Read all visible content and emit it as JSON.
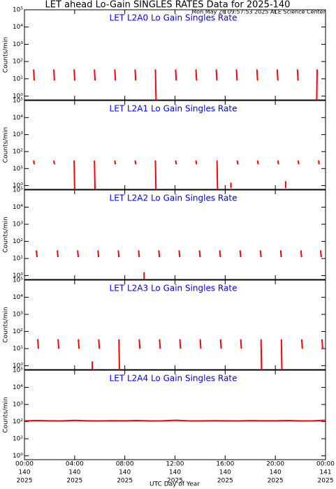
{
  "title": "LET ahead Lo-Gain SINGLES RATES Data for 2025-140",
  "timestamp": "Mon May 26 09:57:53 2025 ACE Science Center",
  "xlabel": "UTC Day of Year",
  "chart_data": [
    {
      "type": "line",
      "title": "LET L2A0 Lo Gain Singles Rate",
      "ylabel": "Counts/min",
      "color": "#ff0000",
      "log_scale": true,
      "xlim": [
        0,
        24
      ],
      "ylim": [
        0.6,
        100000
      ],
      "yticks": [
        {
          "value": 1,
          "label": "10⁰"
        },
        {
          "value": 10,
          "label": "10¹"
        },
        {
          "value": 100,
          "label": "10²"
        },
        {
          "value": 1000,
          "label": "10³"
        },
        {
          "value": 10000,
          "label": "10⁴"
        },
        {
          "value": 100000,
          "label": "10⁵"
        }
      ],
      "x": [
        0.73,
        0.78,
        null,
        2.34,
        2.39,
        null,
        3.96,
        4.01,
        null,
        5.58,
        5.63,
        null,
        7.2,
        7.25,
        null,
        8.82,
        8.87,
        null,
        10.44,
        10.49,
        null,
        12.05,
        12.1,
        null,
        13.67,
        13.72,
        null,
        15.29,
        15.34,
        null,
        16.9,
        16.95,
        null,
        18.53,
        18.58,
        null,
        20.15,
        20.2,
        null,
        21.76,
        21.81,
        null,
        23.3,
        23.33
      ],
      "values": [
        35,
        8,
        null,
        35,
        8,
        null,
        35,
        8,
        null,
        35,
        8,
        null,
        35,
        8,
        null,
        35,
        8,
        null,
        35,
        0.6,
        null,
        35,
        8,
        null,
        35,
        8,
        null,
        35,
        8,
        null,
        35,
        8,
        null,
        35,
        8,
        null,
        35,
        8,
        null,
        35,
        8,
        null,
        0.6,
        35
      ]
    },
    {
      "type": "line",
      "title": "LET L2A1 Lo Gain Singles Rate",
      "ylabel": "Counts/min",
      "color": "#ff0000",
      "log_scale": true,
      "xlim": [
        0,
        24
      ],
      "ylim": [
        0.6,
        100000
      ],
      "yticks": [
        {
          "value": 1,
          "label": "10⁰"
        },
        {
          "value": 10,
          "label": "10¹"
        },
        {
          "value": 100,
          "label": "10²"
        },
        {
          "value": 1000,
          "label": "10³"
        },
        {
          "value": 10000,
          "label": "10⁴"
        },
        {
          "value": 100000,
          "label": "10⁵"
        }
      ],
      "x": [
        0.73,
        0.78,
        null,
        2.34,
        2.39,
        null,
        3.96,
        4.0,
        null,
        5.58,
        5.62,
        null,
        7.2,
        7.25,
        null,
        8.82,
        8.87,
        null,
        10.44,
        10.48,
        null,
        12.05,
        12.1,
        null,
        13.67,
        13.72,
        null,
        15.35,
        15.39,
        null,
        16.46,
        16.46,
        null,
        16.96,
        17.01,
        null,
        18.58,
        18.63,
        null,
        20.2,
        20.25,
        null,
        20.82,
        20.82,
        null,
        21.82,
        21.87,
        null,
        23.44,
        23.49
      ],
      "values": [
        30,
        18,
        null,
        30,
        18,
        null,
        30,
        0.6,
        null,
        30,
        0.6,
        null,
        30,
        18,
        null,
        30,
        18,
        null,
        30,
        0.6,
        null,
        30,
        18,
        null,
        30,
        18,
        null,
        30,
        0.6,
        null,
        0.7,
        1.5,
        null,
        30,
        18,
        null,
        30,
        18,
        null,
        30,
        18,
        null,
        0.7,
        1.8,
        null,
        30,
        18,
        null,
        30,
        18
      ]
    },
    {
      "type": "line",
      "title": "LET L2A2 Lo Gain Singles Rate",
      "ylabel": "Counts/min",
      "color": "#ff0000",
      "log_scale": true,
      "xlim": [
        0,
        24
      ],
      "ylim": [
        0.6,
        100000
      ],
      "yticks": [
        {
          "value": 1,
          "label": "10⁰"
        },
        {
          "value": 10,
          "label": "10¹"
        },
        {
          "value": 100,
          "label": "10²"
        },
        {
          "value": 1000,
          "label": "10³"
        },
        {
          "value": 10000,
          "label": "10⁴"
        },
        {
          "value": 100000,
          "label": "10⁵"
        }
      ],
      "x": [
        0.95,
        1.0,
        null,
        2.62,
        2.67,
        null,
        4.24,
        4.29,
        null,
        5.86,
        5.91,
        null,
        7.48,
        7.53,
        null,
        9.1,
        9.15,
        null,
        9.54,
        9.54,
        null,
        10.71,
        10.76,
        null,
        12.33,
        12.38,
        null,
        13.95,
        14.0,
        null,
        15.57,
        15.62,
        null,
        17.19,
        17.24,
        null,
        18.81,
        18.86,
        null,
        20.42,
        20.47,
        null,
        22.04,
        22.09,
        null,
        23.61,
        23.66
      ],
      "values": [
        30,
        12,
        null,
        30,
        12,
        null,
        30,
        12,
        null,
        30,
        12,
        null,
        30,
        12,
        null,
        30,
        12,
        null,
        0.6,
        1.6,
        null,
        30,
        12,
        null,
        30,
        12,
        null,
        30,
        12,
        null,
        30,
        12,
        null,
        30,
        12,
        null,
        30,
        12,
        null,
        30,
        12,
        null,
        30,
        12,
        null,
        30,
        12
      ]
    },
    {
      "type": "line",
      "title": "LET L2A3 Lo Gain Singles Rate",
      "ylabel": "Counts/min",
      "color": "#ff0000",
      "log_scale": true,
      "xlim": [
        0,
        24
      ],
      "ylim": [
        0.6,
        100000
      ],
      "yticks": [
        {
          "value": 1,
          "label": "10⁰"
        },
        {
          "value": 10,
          "label": "10¹"
        },
        {
          "value": 100,
          "label": "10²"
        },
        {
          "value": 1000,
          "label": "10³"
        },
        {
          "value": 10000,
          "label": "10⁴"
        },
        {
          "value": 100000,
          "label": "10⁵"
        }
      ],
      "x": [
        1.06,
        1.11,
        null,
        2.68,
        2.73,
        null,
        4.3,
        4.35,
        null,
        5.41,
        5.41,
        null,
        5.92,
        5.97,
        null,
        7.53,
        7.57,
        null,
        9.15,
        9.2,
        null,
        10.77,
        10.82,
        null,
        12.39,
        12.44,
        null,
        14.01,
        14.06,
        null,
        15.63,
        15.68,
        null,
        17.24,
        17.29,
        null,
        18.86,
        18.9,
        null,
        20.48,
        20.52,
        null,
        22.1,
        22.15,
        null,
        23.72,
        23.77
      ],
      "values": [
        35,
        10,
        null,
        35,
        10,
        null,
        35,
        10,
        null,
        0.6,
        1.8,
        null,
        35,
        10,
        null,
        35,
        0.6,
        null,
        35,
        10,
        null,
        35,
        10,
        null,
        35,
        10,
        null,
        35,
        10,
        null,
        35,
        10,
        null,
        35,
        10,
        null,
        35,
        0.6,
        null,
        35,
        0.6,
        null,
        35,
        10,
        null,
        35,
        10
      ]
    },
    {
      "type": "line",
      "title": "LET L2A4 Lo Gain Singles Rate",
      "ylabel": "Counts/min",
      "color": "#ff0000",
      "log_scale": true,
      "xlim": [
        0,
        24
      ],
      "ylim": [
        0.6,
        100000
      ],
      "yticks": [
        {
          "value": 1,
          "label": "10⁰"
        },
        {
          "value": 10,
          "label": "10¹"
        },
        {
          "value": 100,
          "label": "10²"
        },
        {
          "value": 1000,
          "label": "10³"
        },
        {
          "value": 10000,
          "label": "10⁴"
        },
        {
          "value": 100000,
          "label": "10⁵"
        }
      ],
      "xticks": [
        {
          "value": 0,
          "label": [
            "00:00",
            "140",
            "2025"
          ]
        },
        {
          "value": 4,
          "label": [
            "04:00",
            "140",
            "2025"
          ]
        },
        {
          "value": 8,
          "label": [
            "08:00",
            "140",
            "2025"
          ]
        },
        {
          "value": 12,
          "label": [
            "12:00",
            "140",
            "2025"
          ]
        },
        {
          "value": 16,
          "label": [
            "16:00",
            "140",
            "2025"
          ]
        },
        {
          "value": 20,
          "label": [
            "20:00",
            "140",
            "2025"
          ]
        },
        {
          "value": 24,
          "label": [
            "00:00",
            "141",
            "2025"
          ]
        }
      ],
      "x": [
        0,
        1,
        2,
        3,
        4,
        5,
        6,
        7,
        8,
        9,
        10,
        11,
        12,
        13,
        14,
        15,
        16,
        17,
        18,
        19,
        20,
        21,
        22,
        23,
        24
      ],
      "values": [
        110,
        115,
        112,
        110,
        118,
        112,
        110,
        113,
        111,
        115,
        110,
        112,
        120,
        111,
        110,
        113,
        112,
        110,
        114,
        111,
        112,
        115,
        110,
        112,
        120
      ]
    }
  ]
}
